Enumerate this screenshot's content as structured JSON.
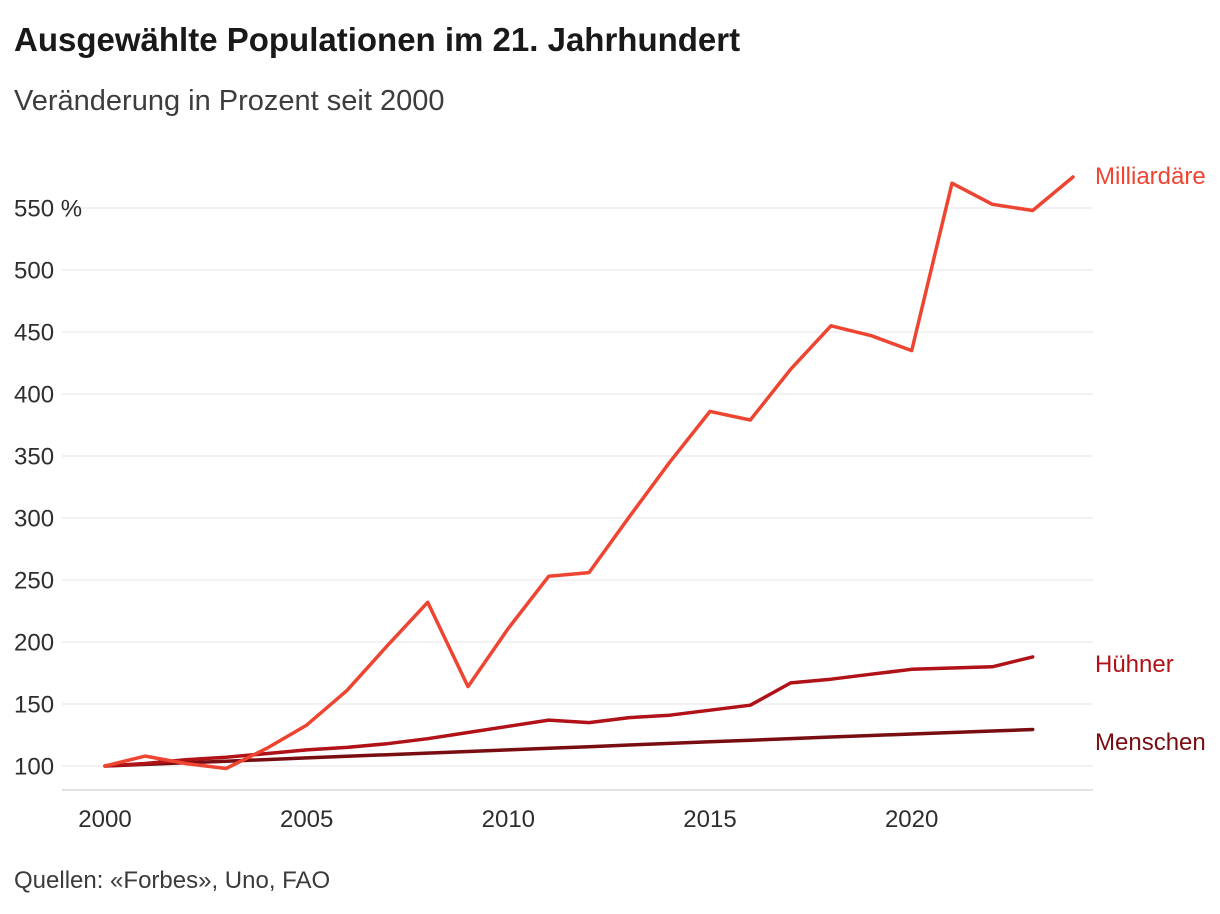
{
  "header": {
    "title": "Ausgewählte Populationen im 21. Jahrhundert",
    "subtitle": "Veränderung in Prozent seit 2000"
  },
  "footer": {
    "source": "Quellen: «Forbes», Uno, FAO"
  },
  "chart_data": {
    "type": "line",
    "title": "Ausgewählte Populationen im 21. Jahrhundert",
    "subtitle": "Veränderung in Prozent seit 2000",
    "unit": "%",
    "grid": "horizontal",
    "legend_position": "right-of-line-ends",
    "x_axis": {
      "ticks": [
        2000,
        2005,
        2010,
        2015,
        2020
      ],
      "range": [
        2000,
        2024
      ]
    },
    "y_axis": {
      "ticks": [
        100,
        150,
        200,
        250,
        300,
        350,
        400,
        450,
        500,
        550
      ],
      "tick_labels": [
        "100",
        "150",
        "200",
        "250",
        "300",
        "350",
        "400",
        "450",
        "500",
        "550 %"
      ],
      "range": [
        81,
        590
      ]
    },
    "series": [
      {
        "id": "milliardaere",
        "name": "Milliardäre",
        "color": "#ee4532",
        "start_year": 2000,
        "values": [
          100,
          108,
          102,
          98,
          114,
          133,
          161,
          197,
          232,
          164,
          211,
          253,
          256,
          301,
          345,
          386,
          379,
          420,
          455,
          447,
          435,
          570,
          553,
          548,
          575
        ]
      },
      {
        "id": "huehner",
        "name": "Hühner",
        "color": "#b01217",
        "start_year": 2000,
        "values": [
          100,
          102,
          105,
          107,
          110,
          113,
          115,
          118,
          122,
          127,
          132,
          137,
          135,
          139,
          141,
          145,
          149,
          167,
          170,
          174,
          178,
          179,
          180,
          188
        ]
      },
      {
        "id": "menschen",
        "name": "Menschen",
        "color": "#780e11",
        "start_year": 2000,
        "values": [
          100,
          101.3,
          102.6,
          103.9,
          105.2,
          106.5,
          107.8,
          109.1,
          110.4,
          111.7,
          113,
          114.3,
          115.6,
          116.9,
          118.2,
          119.5,
          120.8,
          122.1,
          123.4,
          124.6,
          125.8,
          127,
          128.2,
          129.4
        ]
      }
    ]
  }
}
